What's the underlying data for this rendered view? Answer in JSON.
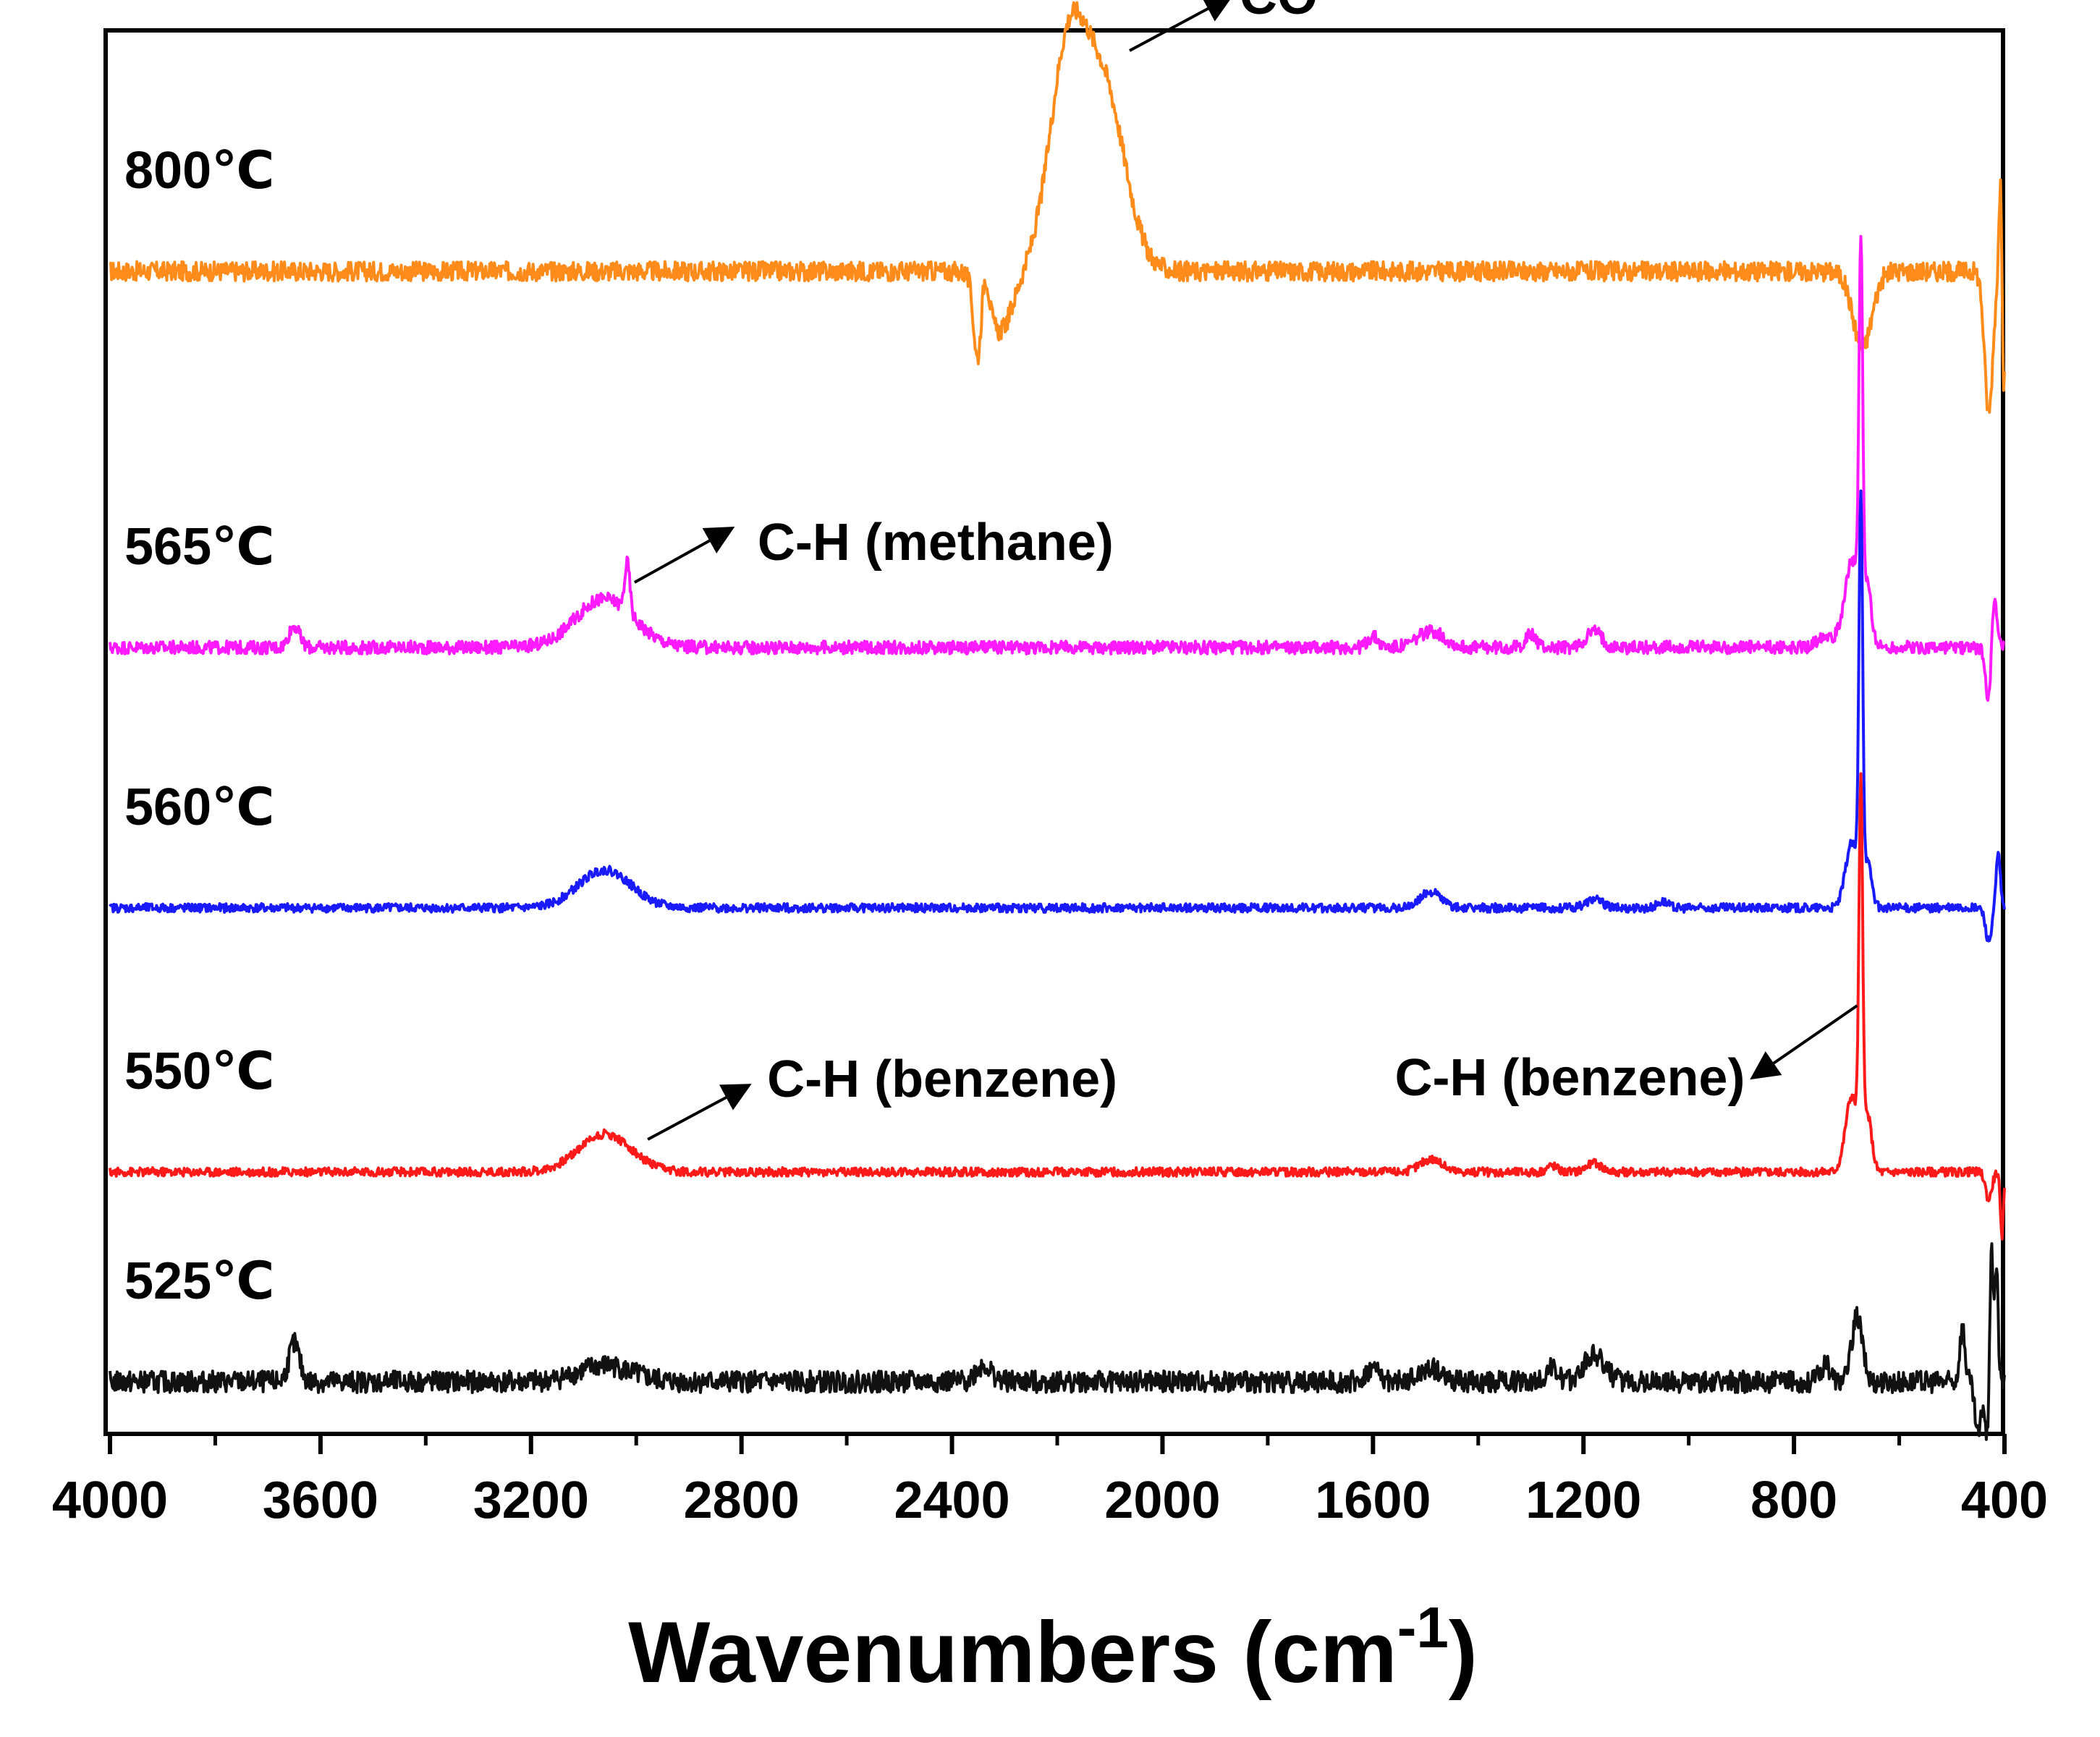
{
  "chart_data": {
    "type": "line",
    "title": "",
    "xlabel": "Wavenumbers (cm",
    "xlabel_sup": "-1",
    "xlabel_close": ")",
    "ylabel": "",
    "xlim": [
      4000,
      400
    ],
    "x_reversed": true,
    "xticks": [
      "4000",
      "3600",
      "3200",
      "2800",
      "2400",
      "2000",
      "1600",
      "1200",
      "800",
      "400"
    ],
    "y_axis": "stacked offset spectra, arbitrary units (no ticks)",
    "series": [
      {
        "name": "800℃",
        "color": "#FF8C1A",
        "offset": 4,
        "noise": 0.09,
        "peaks": [
          {
            "x": 2180,
            "h": 1.95,
            "w": 35
          },
          {
            "x": 2110,
            "h": 1.6,
            "w": 40
          },
          {
            "x": 2310,
            "h": -0.55,
            "w": 25
          },
          {
            "x": 2340,
            "h": 0.5,
            "w": 8
          },
          {
            "x": 2350,
            "h": -0.85,
            "w": 8
          },
          {
            "x": 670,
            "h": -0.7,
            "w": 18
          },
          {
            "x": 430,
            "h": -1.3,
            "w": 8
          },
          {
            "x": 405,
            "h": 1.4,
            "w": 4
          },
          {
            "x": 402,
            "h": -2.0,
            "w": 3
          }
        ]
      },
      {
        "name": "565℃",
        "color": "#FF1AFF",
        "offset": 3,
        "noise": 0.06,
        "peaks": [
          {
            "x": 3060,
            "h": 0.45,
            "w": 55
          },
          {
            "x": 3017,
            "h": 0.45,
            "w": 5
          },
          {
            "x": 3650,
            "h": 0.2,
            "w": 10
          },
          {
            "x": 1490,
            "h": 0.15,
            "w": 25
          },
          {
            "x": 1180,
            "h": 0.15,
            "w": 15
          },
          {
            "x": 1300,
            "h": 0.12,
            "w": 10
          },
          {
            "x": 1600,
            "h": 0.1,
            "w": 10
          },
          {
            "x": 740,
            "h": 0.12,
            "w": 15
          },
          {
            "x": 690,
            "h": 0.8,
            "w": 14
          },
          {
            "x": 673,
            "h": 3.3,
            "w": 3.5
          },
          {
            "x": 660,
            "h": 0.5,
            "w": 8
          },
          {
            "x": 430,
            "h": -0.5,
            "w": 6
          },
          {
            "x": 420,
            "h": 0.5,
            "w": 5
          }
        ]
      },
      {
        "name": "560℃",
        "color": "#1A1AFF",
        "offset": 2,
        "noise": 0.04,
        "peaks": [
          {
            "x": 3060,
            "h": 0.35,
            "w": 50
          },
          {
            "x": 1490,
            "h": 0.15,
            "w": 20
          },
          {
            "x": 1180,
            "h": 0.08,
            "w": 15
          },
          {
            "x": 1050,
            "h": 0.06,
            "w": 10
          },
          {
            "x": 690,
            "h": 0.6,
            "w": 12
          },
          {
            "x": 673,
            "h": 3.55,
            "w": 3.5
          },
          {
            "x": 660,
            "h": 0.4,
            "w": 8
          },
          {
            "x": 430,
            "h": -0.3,
            "w": 6
          },
          {
            "x": 412,
            "h": 0.5,
            "w": 4
          }
        ]
      },
      {
        "name": "550℃",
        "color": "#FF1A1A",
        "offset": 1,
        "noise": 0.04,
        "peaks": [
          {
            "x": 3060,
            "h": 0.35,
            "w": 50
          },
          {
            "x": 1490,
            "h": 0.12,
            "w": 20
          },
          {
            "x": 1180,
            "h": 0.08,
            "w": 15
          },
          {
            "x": 1260,
            "h": 0.06,
            "w": 10
          },
          {
            "x": 690,
            "h": 0.7,
            "w": 12
          },
          {
            "x": 673,
            "h": 3.25,
            "w": 3.5
          },
          {
            "x": 660,
            "h": 0.5,
            "w": 8
          },
          {
            "x": 430,
            "h": -0.25,
            "w": 6
          },
          {
            "x": 405,
            "h": -0.6,
            "w": 3
          }
        ]
      },
      {
        "name": "525℃",
        "color": "#111111",
        "offset": 0,
        "noise": 0.1,
        "peaks": [
          {
            "x": 3650,
            "h": 0.35,
            "w": 10
          },
          {
            "x": 3060,
            "h": 0.15,
            "w": 50
          },
          {
            "x": 2340,
            "h": 0.15,
            "w": 15
          },
          {
            "x": 1600,
            "h": 0.12,
            "w": 12
          },
          {
            "x": 1490,
            "h": 0.12,
            "w": 20
          },
          {
            "x": 1260,
            "h": 0.12,
            "w": 12
          },
          {
            "x": 1180,
            "h": 0.25,
            "w": 20
          },
          {
            "x": 740,
            "h": 0.15,
            "w": 10
          },
          {
            "x": 680,
            "h": 0.6,
            "w": 10
          },
          {
            "x": 480,
            "h": 0.5,
            "w": 5
          },
          {
            "x": 450,
            "h": -0.5,
            "w": 6
          },
          {
            "x": 425,
            "h": 1.3,
            "w": 4
          },
          {
            "x": 432,
            "h": -0.7,
            "w": 4
          },
          {
            "x": 415,
            "h": 1.0,
            "w": 3
          }
        ]
      }
    ],
    "annotations": [
      {
        "text": "CO",
        "x": 2090,
        "series": "800℃"
      },
      {
        "text": "C-H (methane)",
        "x": 3017,
        "series": "565℃"
      },
      {
        "text": "C-H (benzene)",
        "x": 3040,
        "series": "550℃"
      },
      {
        "text": "C-H (benzene)",
        "x": 673,
        "series": "550℃"
      }
    ]
  }
}
